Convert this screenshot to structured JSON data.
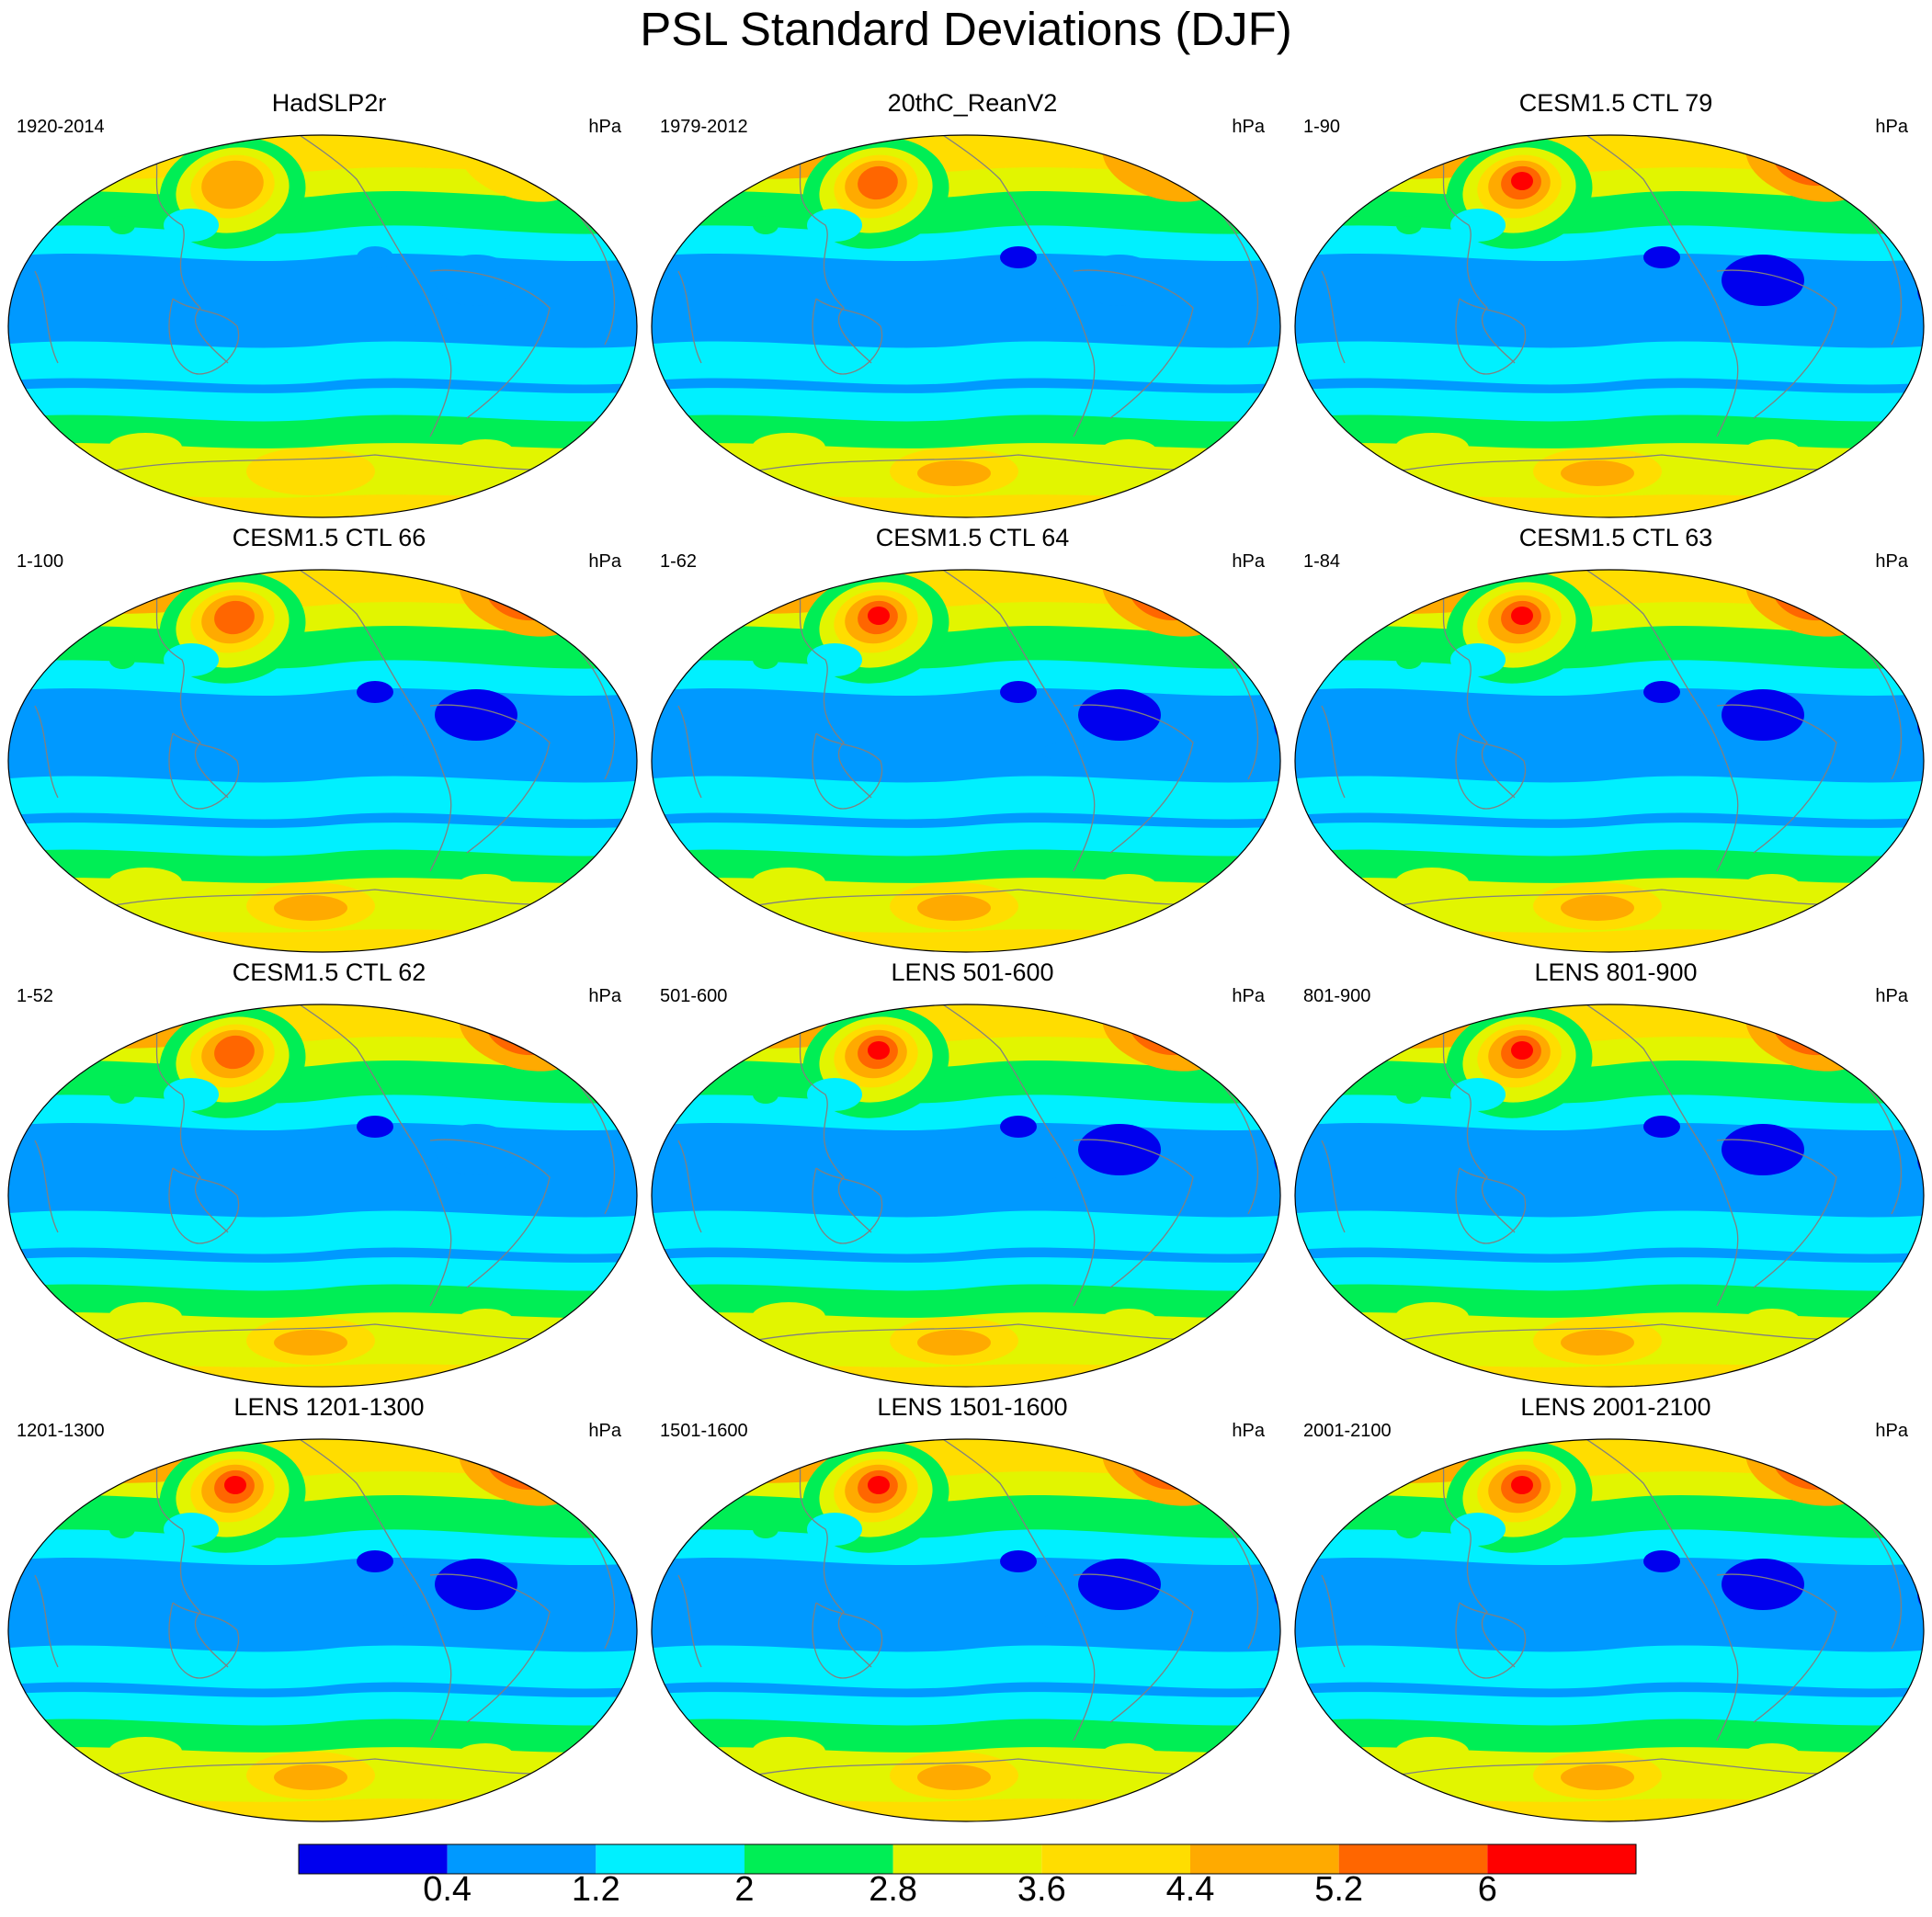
{
  "title": "PSL Standard Deviations (DJF)",
  "units": "hPa",
  "panels": [
    {
      "name": "HadSLP2r",
      "period": "1920-2014",
      "units": "hPa",
      "intensity": 0.0
    },
    {
      "name": "20thC_ReanV2",
      "period": "1979-2012",
      "units": "hPa",
      "intensity": 0.4
    },
    {
      "name": "CESM1.5 CTL 79",
      "period": "1-90",
      "units": "hPa",
      "intensity": 0.7
    },
    {
      "name": "CESM1.5 CTL 66",
      "period": "1-100",
      "units": "hPa",
      "intensity": 0.55
    },
    {
      "name": "CESM1.5 CTL 64",
      "period": "1-62",
      "units": "hPa",
      "intensity": 0.75
    },
    {
      "name": "CESM1.5 CTL 63",
      "period": "1-84",
      "units": "hPa",
      "intensity": 0.7
    },
    {
      "name": "CESM1.5 CTL 62",
      "period": "1-52",
      "units": "hPa",
      "intensity": 0.45
    },
    {
      "name": "LENS 501-600",
      "period": "501-600",
      "units": "hPa",
      "intensity": 0.65
    },
    {
      "name": "LENS 801-900",
      "period": "801-900",
      "units": "hPa",
      "intensity": 0.85
    },
    {
      "name": "LENS 1201-1300",
      "period": "1201-1300",
      "units": "hPa",
      "intensity": 0.75
    },
    {
      "name": "LENS 1501-1600",
      "period": "1501-1600",
      "units": "hPa",
      "intensity": 0.8
    },
    {
      "name": "LENS 2001-2100",
      "period": "2001-2100",
      "units": "hPa",
      "intensity": 0.7
    }
  ],
  "colorbar": {
    "colors": [
      "#0000ee",
      "#0099ff",
      "#00f0ff",
      "#00ee55",
      "#e2f500",
      "#ffdd00",
      "#ffaa00",
      "#ff6600",
      "#ff0000"
    ],
    "labels": [
      "0.4",
      "1.2",
      "2",
      "2.8",
      "3.6",
      "4.4",
      "5.2",
      "6"
    ]
  },
  "coastline_color": "#808080"
}
